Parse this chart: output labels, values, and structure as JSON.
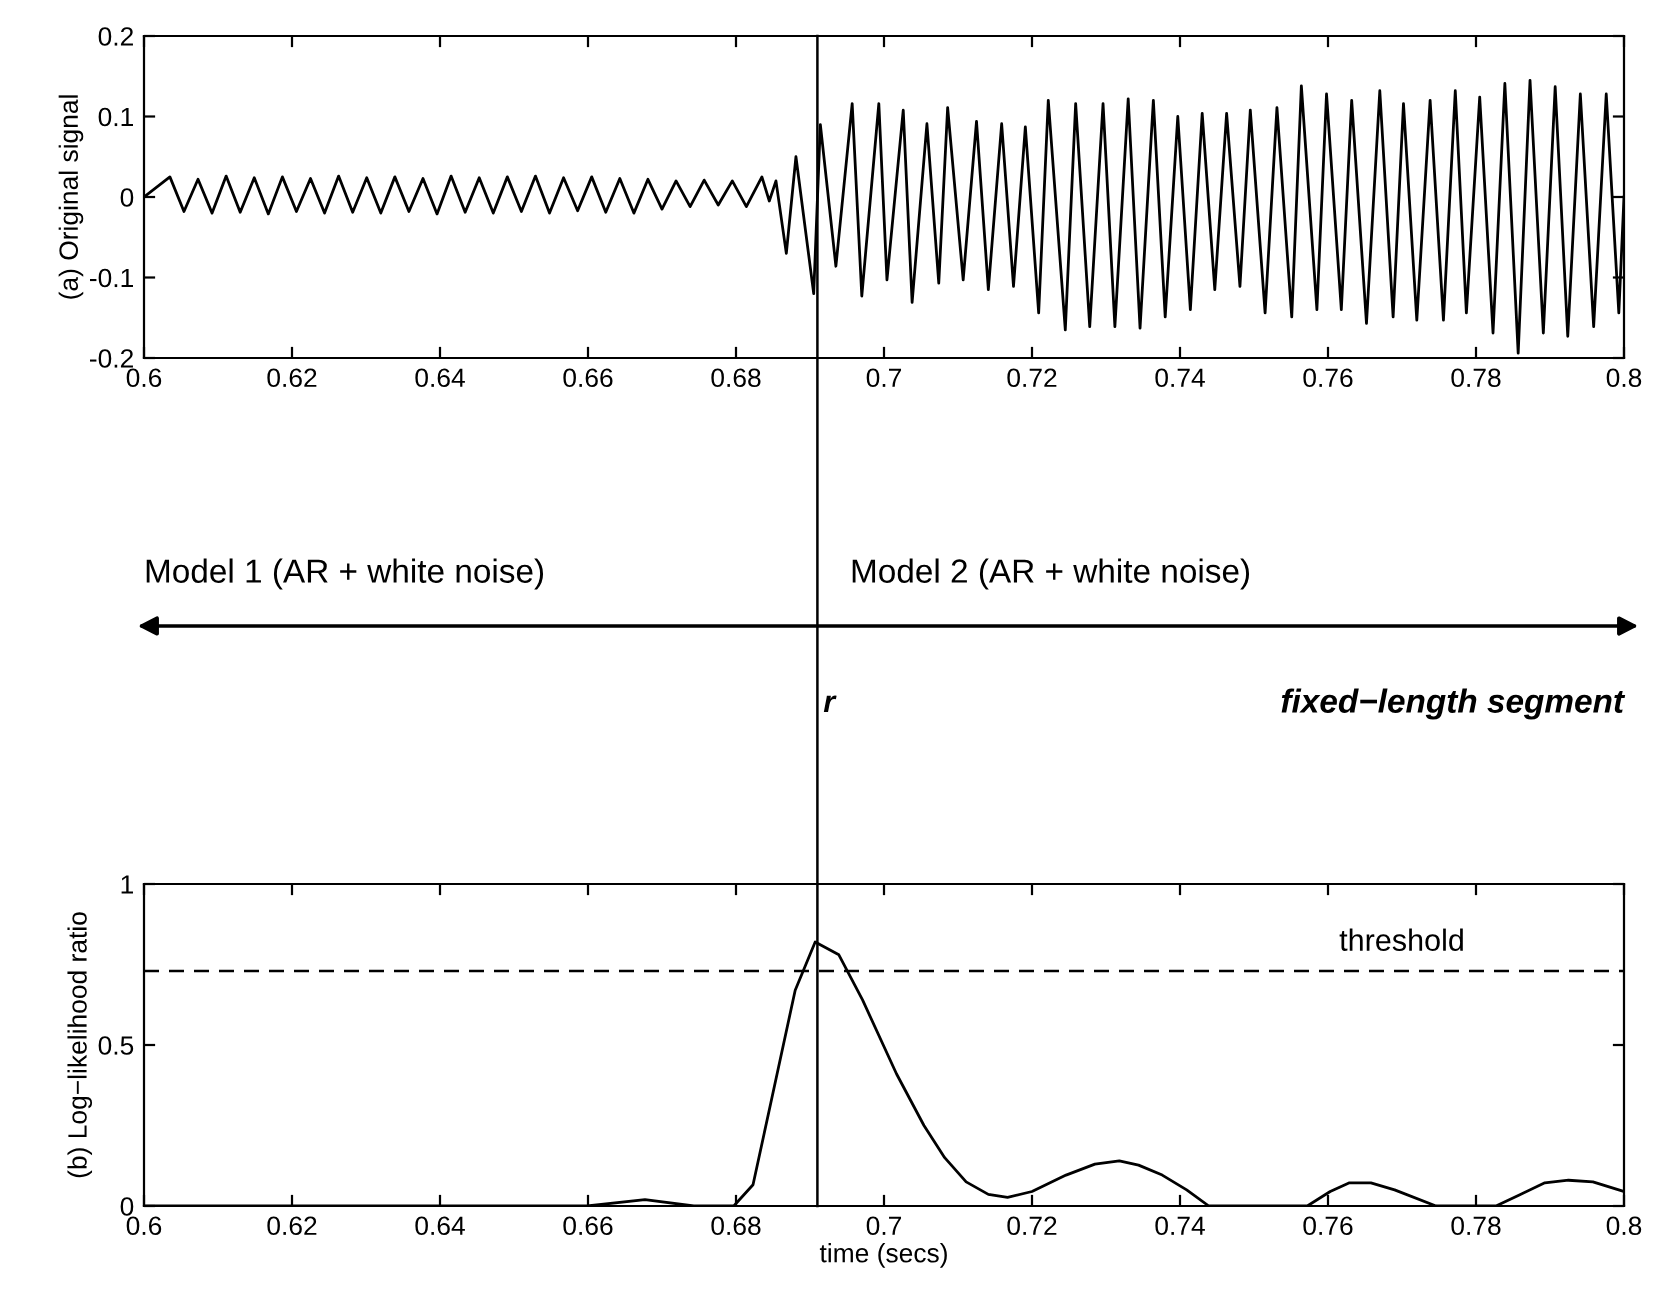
{
  "chart_data": [
    {
      "type": "line",
      "ylabel": "(a) Original signal",
      "color": "#000000",
      "x": [
        0.6,
        0.6035,
        0.6054,
        0.6073,
        0.6092,
        0.6111,
        0.613,
        0.6149,
        0.6168,
        0.6187,
        0.6206,
        0.6225,
        0.6244,
        0.6263,
        0.6282,
        0.6301,
        0.632,
        0.6339,
        0.6358,
        0.6377,
        0.6396,
        0.6415,
        0.6434,
        0.6453,
        0.6472,
        0.6491,
        0.651,
        0.6529,
        0.6548,
        0.6567,
        0.6586,
        0.6605,
        0.6624,
        0.6643,
        0.6662,
        0.6681,
        0.67,
        0.6719,
        0.6738,
        0.6757,
        0.6776,
        0.6795,
        0.6814,
        0.6835,
        0.6845,
        0.6854,
        0.6868,
        0.6881,
        0.6905,
        0.6914,
        0.6935,
        0.6957,
        0.697,
        0.6993,
        0.7004,
        0.7026,
        0.7038,
        0.7058,
        0.7074,
        0.7086,
        0.7107,
        0.7125,
        0.7141,
        0.7159,
        0.7175,
        0.7191,
        0.7209,
        0.7222,
        0.7245,
        0.7259,
        0.7278,
        0.7296,
        0.7312,
        0.733,
        0.7346,
        0.7364,
        0.738,
        0.7397,
        0.7414,
        0.743,
        0.7447,
        0.7463,
        0.7481,
        0.7495,
        0.7515,
        0.7531,
        0.7551,
        0.7564,
        0.7585,
        0.7598,
        0.7618,
        0.7632,
        0.7652,
        0.767,
        0.7688,
        0.7702,
        0.772,
        0.7738,
        0.7756,
        0.7772,
        0.7787,
        0.7805,
        0.7823,
        0.7839,
        0.7857,
        0.7873,
        0.7891,
        0.7907,
        0.7924,
        0.7941,
        0.7959,
        0.7976,
        0.7993,
        0.8
      ],
      "values": [
        0.0,
        0.025,
        -0.018,
        0.022,
        -0.02,
        0.026,
        -0.019,
        0.024,
        -0.021,
        0.025,
        -0.018,
        0.023,
        -0.02,
        0.026,
        -0.019,
        0.024,
        -0.02,
        0.025,
        -0.018,
        0.023,
        -0.021,
        0.026,
        -0.019,
        0.024,
        -0.02,
        0.025,
        -0.018,
        0.026,
        -0.02,
        0.024,
        -0.017,
        0.025,
        -0.019,
        0.023,
        -0.02,
        0.022,
        -0.015,
        0.02,
        -0.012,
        0.021,
        -0.01,
        0.02,
        -0.012,
        0.025,
        -0.005,
        0.02,
        -0.07,
        0.05,
        -0.12,
        0.09,
        -0.086,
        0.116,
        -0.123,
        0.116,
        -0.103,
        0.108,
        -0.131,
        0.091,
        -0.107,
        0.111,
        -0.103,
        0.094,
        -0.115,
        0.091,
        -0.111,
        0.087,
        -0.144,
        0.12,
        -0.165,
        0.116,
        -0.161,
        0.116,
        -0.161,
        0.122,
        -0.163,
        0.12,
        -0.149,
        0.1,
        -0.14,
        0.104,
        -0.115,
        0.104,
        -0.111,
        0.108,
        -0.144,
        0.111,
        -0.149,
        0.138,
        -0.14,
        0.128,
        -0.14,
        0.12,
        -0.157,
        0.132,
        -0.149,
        0.116,
        -0.153,
        0.12,
        -0.153,
        0.132,
        -0.144,
        0.124,
        -0.169,
        0.141,
        -0.194,
        0.145,
        -0.169,
        0.137,
        -0.173,
        0.128,
        -0.161,
        0.128,
        -0.144,
        0.0
      ],
      "xlim": [
        0.6,
        0.8
      ],
      "ylim": [
        -0.2,
        0.2
      ],
      "xticks": [
        0.6,
        0.62,
        0.64,
        0.66,
        0.68,
        0.7,
        0.72,
        0.74,
        0.76,
        0.78,
        0.8
      ],
      "yticks": [
        -0.2,
        -0.1,
        0,
        0.1,
        0.2
      ],
      "ref_lines": [
        {
          "axis": "x",
          "value": 0.691,
          "label": "r",
          "color": "#000000",
          "line_style": "solid"
        }
      ],
      "annotations": [
        "Model 1 (AR + white noise)",
        "Model 2 (AR + white noise)",
        "fixed−length segment"
      ],
      "grid": false,
      "legend": false
    },
    {
      "type": "line",
      "ylabel": "(b) Log−likelihood ratio",
      "xlabel": "time (secs)",
      "color": "#000000",
      "x": [
        0.6,
        0.6599,
        0.6677,
        0.6743,
        0.6797,
        0.6823,
        0.6847,
        0.688,
        0.6907,
        0.6939,
        0.6971,
        0.7017,
        0.7054,
        0.7082,
        0.7111,
        0.7141,
        0.7167,
        0.72,
        0.7246,
        0.7285,
        0.7318,
        0.7344,
        0.7376,
        0.7409,
        0.7439,
        0.7572,
        0.7603,
        0.7629,
        0.7658,
        0.769,
        0.7746,
        0.7827,
        0.786,
        0.7893,
        0.7925,
        0.7958,
        0.8
      ],
      "values": [
        0,
        0,
        0.02,
        0,
        0,
        0.066,
        0.32,
        0.67,
        0.82,
        0.78,
        0.64,
        0.41,
        0.25,
        0.15,
        0.075,
        0.036,
        0.027,
        0.045,
        0.096,
        0.13,
        0.14,
        0.127,
        0.096,
        0.05,
        0,
        0,
        0.045,
        0.072,
        0.072,
        0.05,
        0,
        0,
        0.036,
        0.072,
        0.08,
        0.075,
        0.045
      ],
      "xlim": [
        0.6,
        0.8
      ],
      "ylim": [
        0,
        1
      ],
      "xticks": [
        0.6,
        0.62,
        0.64,
        0.66,
        0.68,
        0.7,
        0.72,
        0.74,
        0.76,
        0.78,
        0.8
      ],
      "yticks": [
        0,
        0.5,
        1
      ],
      "ref_lines": [
        {
          "axis": "y",
          "value": 0.73,
          "label": "threshold",
          "color": "#000000",
          "line_style": "dashed"
        },
        {
          "axis": "x",
          "value": 0.691,
          "label": null,
          "color": "#000000",
          "line_style": "solid"
        }
      ],
      "grid": false
    }
  ]
}
